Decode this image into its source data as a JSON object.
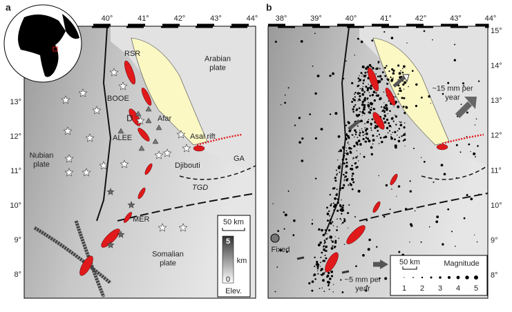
{
  "panel_a": {
    "label": "a",
    "lon_labels": [
      "40°",
      "41°",
      "42°",
      "43°",
      "44°"
    ],
    "lat_labels": [
      "13°",
      "12°",
      "11°",
      "10°",
      "9°",
      "8°"
    ],
    "labels": {
      "rsr": "RSR",
      "arabian": "Arabian\nplate",
      "booe": "BOOE",
      "d": "D",
      "afar": "Afar",
      "alee": "ALEE",
      "asal": "Asal rift",
      "nubian": "Nubian\nplate",
      "djibouti": "Djibouti",
      "ga": "GA",
      "tgd": "TGD",
      "mer": "MER",
      "somalian": "Somalian\nplate"
    },
    "scale": {
      "distance": "50 km",
      "elev_max": "5",
      "elev_unit": "km",
      "elev_min": "0",
      "elev_title": "Elev."
    }
  },
  "panel_b": {
    "label": "b",
    "lon_labels": [
      "38°",
      "39°",
      "40°",
      "41°",
      "42°",
      "43°",
      "44°"
    ],
    "lat_labels": [
      "15°",
      "14°",
      "13°",
      "12°",
      "11°",
      "10°",
      "9°",
      "8°"
    ],
    "labels": {
      "rate_ne": "~15 mm per\nyear",
      "fixed": "Fixed",
      "rate_sw": "~5 mm per\nyear"
    },
    "scale": {
      "distance": "50 km",
      "magnitude_title": "Magnitude",
      "magnitudes": [
        "1",
        "2",
        "3",
        "4",
        "5"
      ]
    }
  }
}
